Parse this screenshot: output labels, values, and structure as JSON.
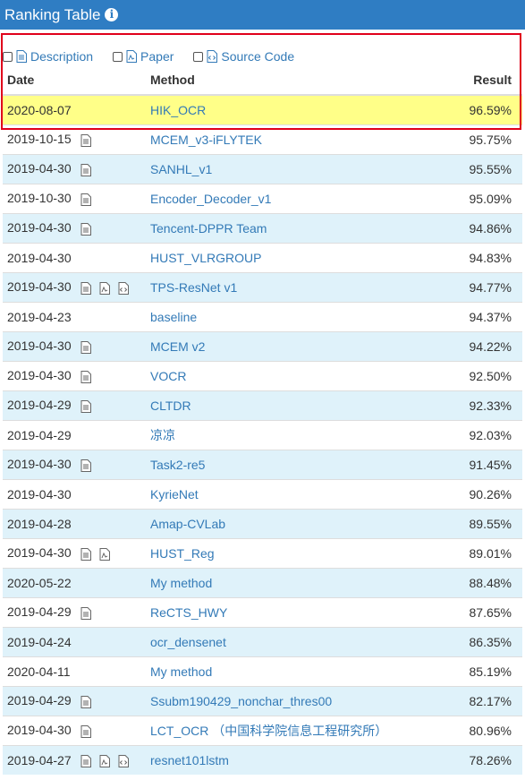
{
  "header": {
    "title": "Ranking Table",
    "info_glyph": "i"
  },
  "legend": {
    "description": "Description",
    "paper": "Paper",
    "source_code": "Source Code"
  },
  "columns": {
    "date": "Date",
    "method": "Method",
    "result": "Result"
  },
  "rows": [
    {
      "date": "2020-08-07",
      "icons": [],
      "method": "HIK_OCR",
      "result": "96.59%"
    },
    {
      "date": "2019-10-15",
      "icons": [
        "description-icon"
      ],
      "method": "MCEM_v3-iFLYTEK",
      "result": "95.75%"
    },
    {
      "date": "2019-04-30",
      "icons": [
        "description-icon"
      ],
      "method": "SANHL_v1",
      "result": "95.55%"
    },
    {
      "date": "2019-10-30",
      "icons": [
        "description-icon"
      ],
      "method": "Encoder_Decoder_v1",
      "result": "95.09%"
    },
    {
      "date": "2019-04-30",
      "icons": [
        "description-icon"
      ],
      "method": "Tencent-DPPR Team",
      "result": "94.86%"
    },
    {
      "date": "2019-04-30",
      "icons": [],
      "method": "HUST_VLRGROUP",
      "result": "94.83%"
    },
    {
      "date": "2019-04-30",
      "icons": [
        "description-icon",
        "paper-icon",
        "source-code-icon"
      ],
      "method": "TPS-ResNet v1",
      "result": "94.77%"
    },
    {
      "date": "2019-04-23",
      "icons": [],
      "method": "baseline",
      "result": "94.37%"
    },
    {
      "date": "2019-04-30",
      "icons": [
        "description-icon"
      ],
      "method": "MCEM v2",
      "result": "94.22%"
    },
    {
      "date": "2019-04-30",
      "icons": [
        "description-icon"
      ],
      "method": "VOCR",
      "result": "92.50%"
    },
    {
      "date": "2019-04-29",
      "icons": [
        "description-icon"
      ],
      "method": "CLTDR",
      "result": "92.33%"
    },
    {
      "date": "2019-04-29",
      "icons": [],
      "method": "凉凉",
      "result": "92.03%"
    },
    {
      "date": "2019-04-30",
      "icons": [
        "description-icon"
      ],
      "method": "Task2-re5",
      "result": "91.45%"
    },
    {
      "date": "2019-04-30",
      "icons": [],
      "method": "KyrieNet",
      "result": "90.26%"
    },
    {
      "date": "2019-04-28",
      "icons": [],
      "method": "Amap-CVLab",
      "result": "89.55%"
    },
    {
      "date": "2019-04-30",
      "icons": [
        "description-icon",
        "paper-icon"
      ],
      "method": "HUST_Reg",
      "result": "89.01%"
    },
    {
      "date": "2020-05-22",
      "icons": [],
      "method": "My method",
      "result": "88.48%"
    },
    {
      "date": "2019-04-29",
      "icons": [
        "description-icon"
      ],
      "method": "ReCTS_HWY",
      "result": "87.65%"
    },
    {
      "date": "2019-04-24",
      "icons": [],
      "method": "ocr_densenet",
      "result": "86.35%"
    },
    {
      "date": "2020-04-11",
      "icons": [],
      "method": "My method",
      "result": "85.19%"
    },
    {
      "date": "2019-04-29",
      "icons": [
        "description-icon"
      ],
      "method": "Ssubm190429_nonchar_thres00",
      "result": "82.17%"
    },
    {
      "date": "2019-04-30",
      "icons": [
        "description-icon"
      ],
      "method": "LCT_OCR （中国科学院信息工程研究所）",
      "result": "80.96%"
    },
    {
      "date": "2019-04-27",
      "icons": [
        "description-icon",
        "paper-icon",
        "source-code-icon"
      ],
      "method": "resnet101lstm",
      "result": "78.26%"
    }
  ],
  "colors": {
    "header_bg": "#2f7dc3",
    "link": "#337ab7",
    "row_stripe": "#dff2fa",
    "row_highlight": "#ffff88",
    "highlight_border": "#e0001b"
  }
}
